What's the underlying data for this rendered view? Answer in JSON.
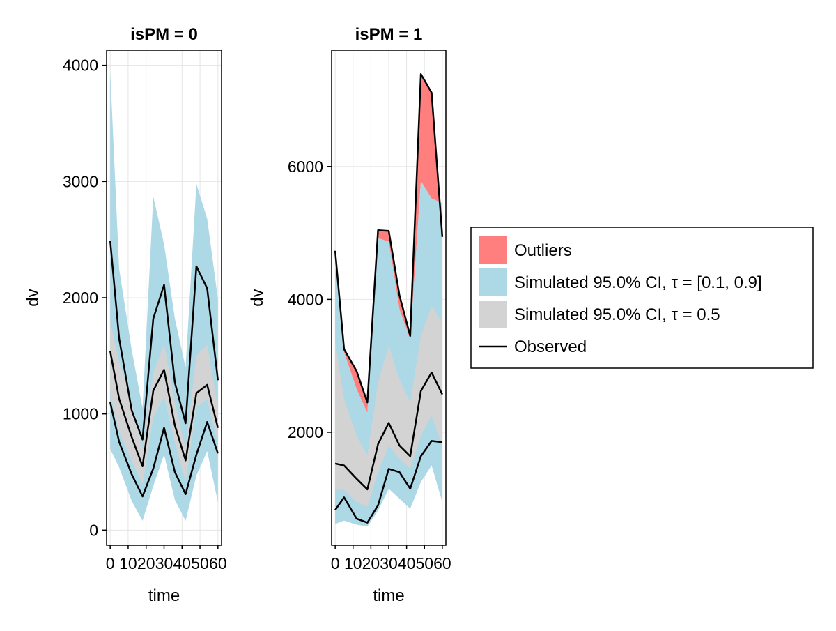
{
  "chart_data": {
    "type": "area",
    "xlabel": "time",
    "ylabel": "dv",
    "grid": true,
    "legend_position": "right",
    "colors": {
      "outliers": "#ff7f7f",
      "ci_outer": "#add8e6",
      "ci_median": "#d3d3d3",
      "observed": "#000000",
      "grid": "#e5e5e5"
    },
    "legend": [
      {
        "key": "outliers",
        "label": "Outliers"
      },
      {
        "key": "ci_outer",
        "label": "Simulated 95.0% CI, τ = [0.1, 0.9]"
      },
      {
        "key": "ci_median",
        "label": "Simulated 95.0% CI, τ = 0.5"
      },
      {
        "key": "observed",
        "label": "Observed"
      }
    ],
    "panels": [
      {
        "title": "isPM = 0",
        "x": [
          0,
          5,
          12,
          18,
          24,
          30,
          36,
          42,
          48,
          54,
          60
        ],
        "xticks": [
          0,
          10,
          20,
          30,
          40,
          50,
          60
        ],
        "xtick_labels": [
          "0",
          "10",
          "20",
          "30",
          "40",
          "50",
          "60"
        ],
        "xlim": [
          -2,
          62
        ],
        "ylim": [
          -130,
          4130
        ],
        "yticks": [
          0,
          1000,
          2000,
          3000,
          4000
        ],
        "ytick_labels": [
          "0",
          "1000",
          "2000",
          "3000",
          "4000"
        ],
        "observed": [
          [
            2490,
            1650,
            1030,
            780,
            1820,
            2110,
            1270,
            920,
            2270,
            2080,
            1290
          ],
          [
            1540,
            1130,
            800,
            550,
            1200,
            1380,
            900,
            600,
            1180,
            1250,
            880
          ],
          [
            1100,
            760,
            480,
            290,
            530,
            880,
            500,
            310,
            650,
            930,
            660
          ]
        ],
        "ci_lower": {
          "hi": [
            3950,
            2250,
            1550,
            1050,
            2870,
            2460,
            1820,
            1400,
            2980,
            2680,
            1990
          ],
          "lo": [
            1180,
            850,
            600,
            400,
            980,
            1150,
            760,
            420,
            1060,
            1130,
            750
          ]
        },
        "ci_median": {
          "hi": [
            1800,
            1450,
            1100,
            700,
            1350,
            1600,
            1100,
            700,
            1500,
            1600,
            1050
          ],
          "lo": [
            1180,
            850,
            600,
            400,
            980,
            1150,
            760,
            420,
            1060,
            1130,
            750
          ]
        },
        "ci_upper_lower_band": {
          "hi": [
            1180,
            850,
            600,
            400,
            980,
            1150,
            760,
            420,
            1060,
            1130,
            750
          ],
          "lo": [
            700,
            540,
            250,
            80,
            380,
            650,
            260,
            80,
            470,
            680,
            240
          ]
        },
        "outliers": []
      },
      {
        "title": "isPM = 1",
        "x": [
          0,
          5,
          12,
          18,
          24,
          30,
          36,
          42,
          48,
          54,
          60
        ],
        "xticks": [
          0,
          10,
          20,
          30,
          40,
          50,
          60
        ],
        "xtick_labels": [
          "0",
          "10",
          "20",
          "30",
          "40",
          "50",
          "60"
        ],
        "xlim": [
          -2,
          62
        ],
        "ylim": [
          300,
          7750
        ],
        "yticks": [
          2000,
          4000,
          6000
        ],
        "ytick_labels": [
          "2000",
          "4000",
          "6000"
        ],
        "observed": [
          [
            4730,
            3250,
            2920,
            2450,
            5040,
            5030,
            4060,
            3450,
            7390,
            7110,
            4940
          ],
          [
            1530,
            1500,
            1300,
            1140,
            1820,
            2140,
            1800,
            1640,
            2620,
            2900,
            2570
          ],
          [
            830,
            1020,
            700,
            640,
            900,
            1450,
            1400,
            1150,
            1640,
            1870,
            1850
          ]
        ],
        "ci_outer": {
          "hi": [
            4580,
            3200,
            2650,
            2290,
            4920,
            4870,
            3850,
            3400,
            5780,
            5520,
            5450
          ],
          "lo": [
            620,
            670,
            610,
            580,
            820,
            1150,
            1000,
            850,
            1250,
            1500,
            950
          ]
        },
        "ci_median": {
          "hi": [
            3350,
            2500,
            1950,
            1650,
            2750,
            3300,
            2800,
            2450,
            3450,
            3900,
            3650
          ],
          "lo": [
            1150,
            1130,
            950,
            880,
            1400,
            1800,
            1600,
            1450,
            1950,
            2250,
            1800
          ]
        },
        "outliers": [
          {
            "x": [
              0,
              5,
              12,
              18,
              24,
              30,
              36,
              42,
              48,
              54,
              60
            ],
            "hi": [
              4730,
              3250,
              2920,
              2450,
              5040,
              5030,
              4060,
              3450,
              7390,
              7110,
              4940
            ],
            "lo": [
              4580,
              3200,
              2650,
              2290,
              4920,
              4870,
              3850,
              3400,
              5780,
              5520,
              4940
            ]
          }
        ]
      }
    ]
  }
}
